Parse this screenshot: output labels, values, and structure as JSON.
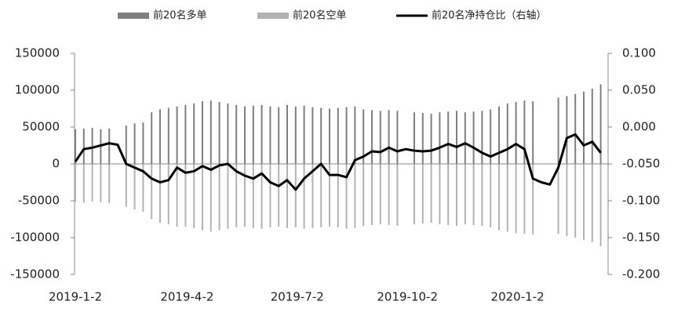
{
  "chart_data": {
    "type": "bar_line",
    "categories": [
      "2019-1-2",
      null,
      null,
      null,
      null,
      null,
      null,
      null,
      null,
      null,
      null,
      null,
      null,
      "2019-4-2",
      null,
      null,
      null,
      null,
      null,
      null,
      null,
      null,
      null,
      null,
      null,
      null,
      "2019-7-2",
      null,
      null,
      null,
      null,
      null,
      null,
      null,
      null,
      null,
      null,
      null,
      null,
      "2019-10-2",
      null,
      null,
      null,
      null,
      null,
      null,
      null,
      null,
      null,
      null,
      null,
      null,
      "2020-1-2",
      null,
      null,
      null,
      null,
      null,
      null,
      null,
      null,
      null,
      null
    ],
    "series": [
      {
        "name": "前20名多单",
        "color": "#7f7f7f",
        "values": [
          47000,
          48000,
          49000,
          47000,
          48000,
          null,
          52000,
          55000,
          56000,
          70000,
          74000,
          76000,
          78000,
          80000,
          82000,
          85000,
          86000,
          84000,
          82000,
          80000,
          78000,
          79000,
          80000,
          78000,
          77000,
          80000,
          78000,
          79000,
          77000,
          76000,
          75000,
          76000,
          77000,
          78000,
          74000,
          73000,
          72000,
          73000,
          72000,
          null,
          70000,
          69000,
          68000,
          70000,
          71000,
          72000,
          70000,
          71000,
          72000,
          74000,
          78000,
          82000,
          84000,
          86000,
          85000,
          null,
          null,
          90000,
          92000,
          95000,
          98000,
          102000,
          108000
        ]
      },
      {
        "name": "前20名空单",
        "color": "#b3b3b3",
        "values": [
          -52000,
          -53000,
          -51000,
          -52000,
          -53000,
          null,
          -58000,
          -62000,
          -65000,
          -75000,
          -80000,
          -82000,
          -85000,
          -85000,
          -87000,
          -90000,
          -92000,
          -90000,
          -88000,
          -86000,
          -85000,
          -87000,
          -88000,
          -86000,
          -85000,
          -87000,
          -86000,
          -88000,
          -87000,
          -86000,
          -85000,
          -86000,
          -88000,
          -87000,
          -84000,
          -83000,
          -82000,
          -83000,
          -84000,
          null,
          -82000,
          -81000,
          -80000,
          -82000,
          -83000,
          -84000,
          -82000,
          -83000,
          -84000,
          -86000,
          -90000,
          -92000,
          -94000,
          -95000,
          -96000,
          null,
          null,
          -95000,
          -98000,
          -100000,
          -103000,
          -106000,
          -112000
        ]
      },
      {
        "name": "前20名净持仓比（右轴）",
        "color": "#000000",
        "axis": "y2",
        "values": [
          -0.047,
          -0.03,
          -0.028,
          -0.025,
          -0.022,
          -0.024,
          -0.05,
          -0.055,
          -0.06,
          -0.07,
          -0.075,
          -0.072,
          -0.055,
          -0.062,
          -0.06,
          -0.053,
          -0.058,
          -0.052,
          -0.05,
          -0.06,
          -0.066,
          -0.07,
          -0.063,
          -0.075,
          -0.08,
          -0.072,
          -0.085,
          -0.07,
          -0.06,
          -0.05,
          -0.065,
          -0.065,
          -0.068,
          -0.045,
          -0.04,
          -0.033,
          -0.034,
          -0.028,
          -0.033,
          -0.03,
          -0.032,
          -0.033,
          -0.032,
          -0.028,
          -0.023,
          -0.027,
          -0.022,
          -0.028,
          -0.035,
          -0.04,
          -0.035,
          -0.03,
          -0.023,
          -0.03,
          -0.07,
          -0.075,
          -0.078,
          -0.055,
          -0.015,
          -0.01,
          -0.025,
          -0.02,
          -0.035
        ]
      }
    ],
    "ylim": [
      -150000,
      150000
    ],
    "yticks": [
      -150000,
      -100000,
      -50000,
      0,
      50000,
      100000,
      150000
    ],
    "y2lim": [
      -0.2,
      0.1
    ],
    "y2ticks": [
      {
        "value": -0.2,
        "label": "-0.200"
      },
      {
        "value": -0.15,
        "label": "-0.150"
      },
      {
        "value": -0.1,
        "label": "-0.100"
      },
      {
        "value": -0.05,
        "label": "-0.050"
      },
      {
        "value": 0,
        "label": "0.000"
      },
      {
        "value": 0.05,
        "label": "0.050"
      },
      {
        "value": 0.1,
        "label": "0.100"
      }
    ],
    "legend": "top"
  }
}
